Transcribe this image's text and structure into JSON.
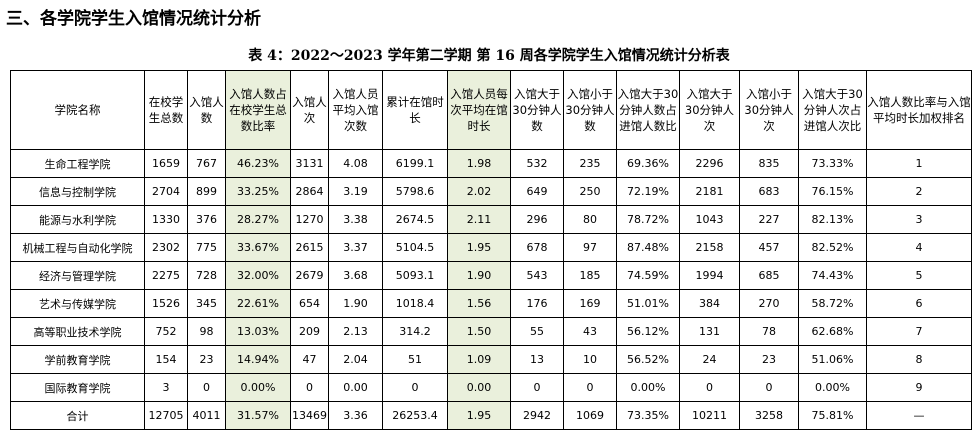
{
  "section_title": "三、各学院学生入馆情况统计分析",
  "table_title": "表 4：2022～2023 学年第二学期 第 16 周各学院学生入馆情况统计分析表",
  "columns": [
    "学院名称",
    "在校学生总数",
    "入馆人数",
    "入馆人数占在校学生总数比率",
    "入馆人次",
    "入馆人员平均入馆次数",
    "累计在馆时长",
    "入馆人员每次平均在馆时长",
    "入馆大于30分钟人数",
    "入馆小于30分钟人数",
    "入馆大于30分钟人数占进馆人数比",
    "入馆大于30分钟人次",
    "入馆小于30分钟人次",
    "入馆大于30分钟人次占进馆人次比",
    "入馆人数比率与入馆平均时长加权排名"
  ],
  "rows": [
    [
      "生命工程学院",
      "1659",
      "767",
      "46.23%",
      "3131",
      "4.08",
      "6199.1",
      "1.98",
      "532",
      "235",
      "69.36%",
      "2296",
      "835",
      "73.33%",
      "1"
    ],
    [
      "信息与控制学院",
      "2704",
      "899",
      "33.25%",
      "2864",
      "3.19",
      "5798.6",
      "2.02",
      "649",
      "250",
      "72.19%",
      "2181",
      "683",
      "76.15%",
      "2"
    ],
    [
      "能源与水利学院",
      "1330",
      "376",
      "28.27%",
      "1270",
      "3.38",
      "2674.5",
      "2.11",
      "296",
      "80",
      "78.72%",
      "1043",
      "227",
      "82.13%",
      "3"
    ],
    [
      "机械工程与自动化学院",
      "2302",
      "775",
      "33.67%",
      "2615",
      "3.37",
      "5104.5",
      "1.95",
      "678",
      "97",
      "87.48%",
      "2158",
      "457",
      "82.52%",
      "4"
    ],
    [
      "经济与管理学院",
      "2275",
      "728",
      "32.00%",
      "2679",
      "3.68",
      "5093.1",
      "1.90",
      "543",
      "185",
      "74.59%",
      "1994",
      "685",
      "74.43%",
      "5"
    ],
    [
      "艺术与传媒学院",
      "1526",
      "345",
      "22.61%",
      "654",
      "1.90",
      "1018.4",
      "1.56",
      "176",
      "169",
      "51.01%",
      "384",
      "270",
      "58.72%",
      "6"
    ],
    [
      "高等职业技术学院",
      "752",
      "98",
      "13.03%",
      "209",
      "2.13",
      "314.2",
      "1.50",
      "55",
      "43",
      "56.12%",
      "131",
      "78",
      "62.68%",
      "7"
    ],
    [
      "学前教育学院",
      "154",
      "23",
      "14.94%",
      "47",
      "2.04",
      "51",
      "1.09",
      "13",
      "10",
      "56.52%",
      "24",
      "23",
      "51.06%",
      "8"
    ],
    [
      "国际教育学院",
      "3",
      "0",
      "0.00%",
      "0",
      "0.00",
      "0",
      "0.00",
      "0",
      "0",
      "0.00%",
      "0",
      "0",
      "0.00%",
      "9"
    ],
    [
      "合计",
      "12705",
      "4011",
      "31.57%",
      "13469",
      "3.36",
      "26253.4",
      "1.95",
      "2942",
      "1069",
      "73.35%",
      "10211",
      "3258",
      "75.81%",
      "—"
    ]
  ],
  "highlight_columns": [
    3,
    7
  ],
  "highlight_color": "#eaf0dc"
}
